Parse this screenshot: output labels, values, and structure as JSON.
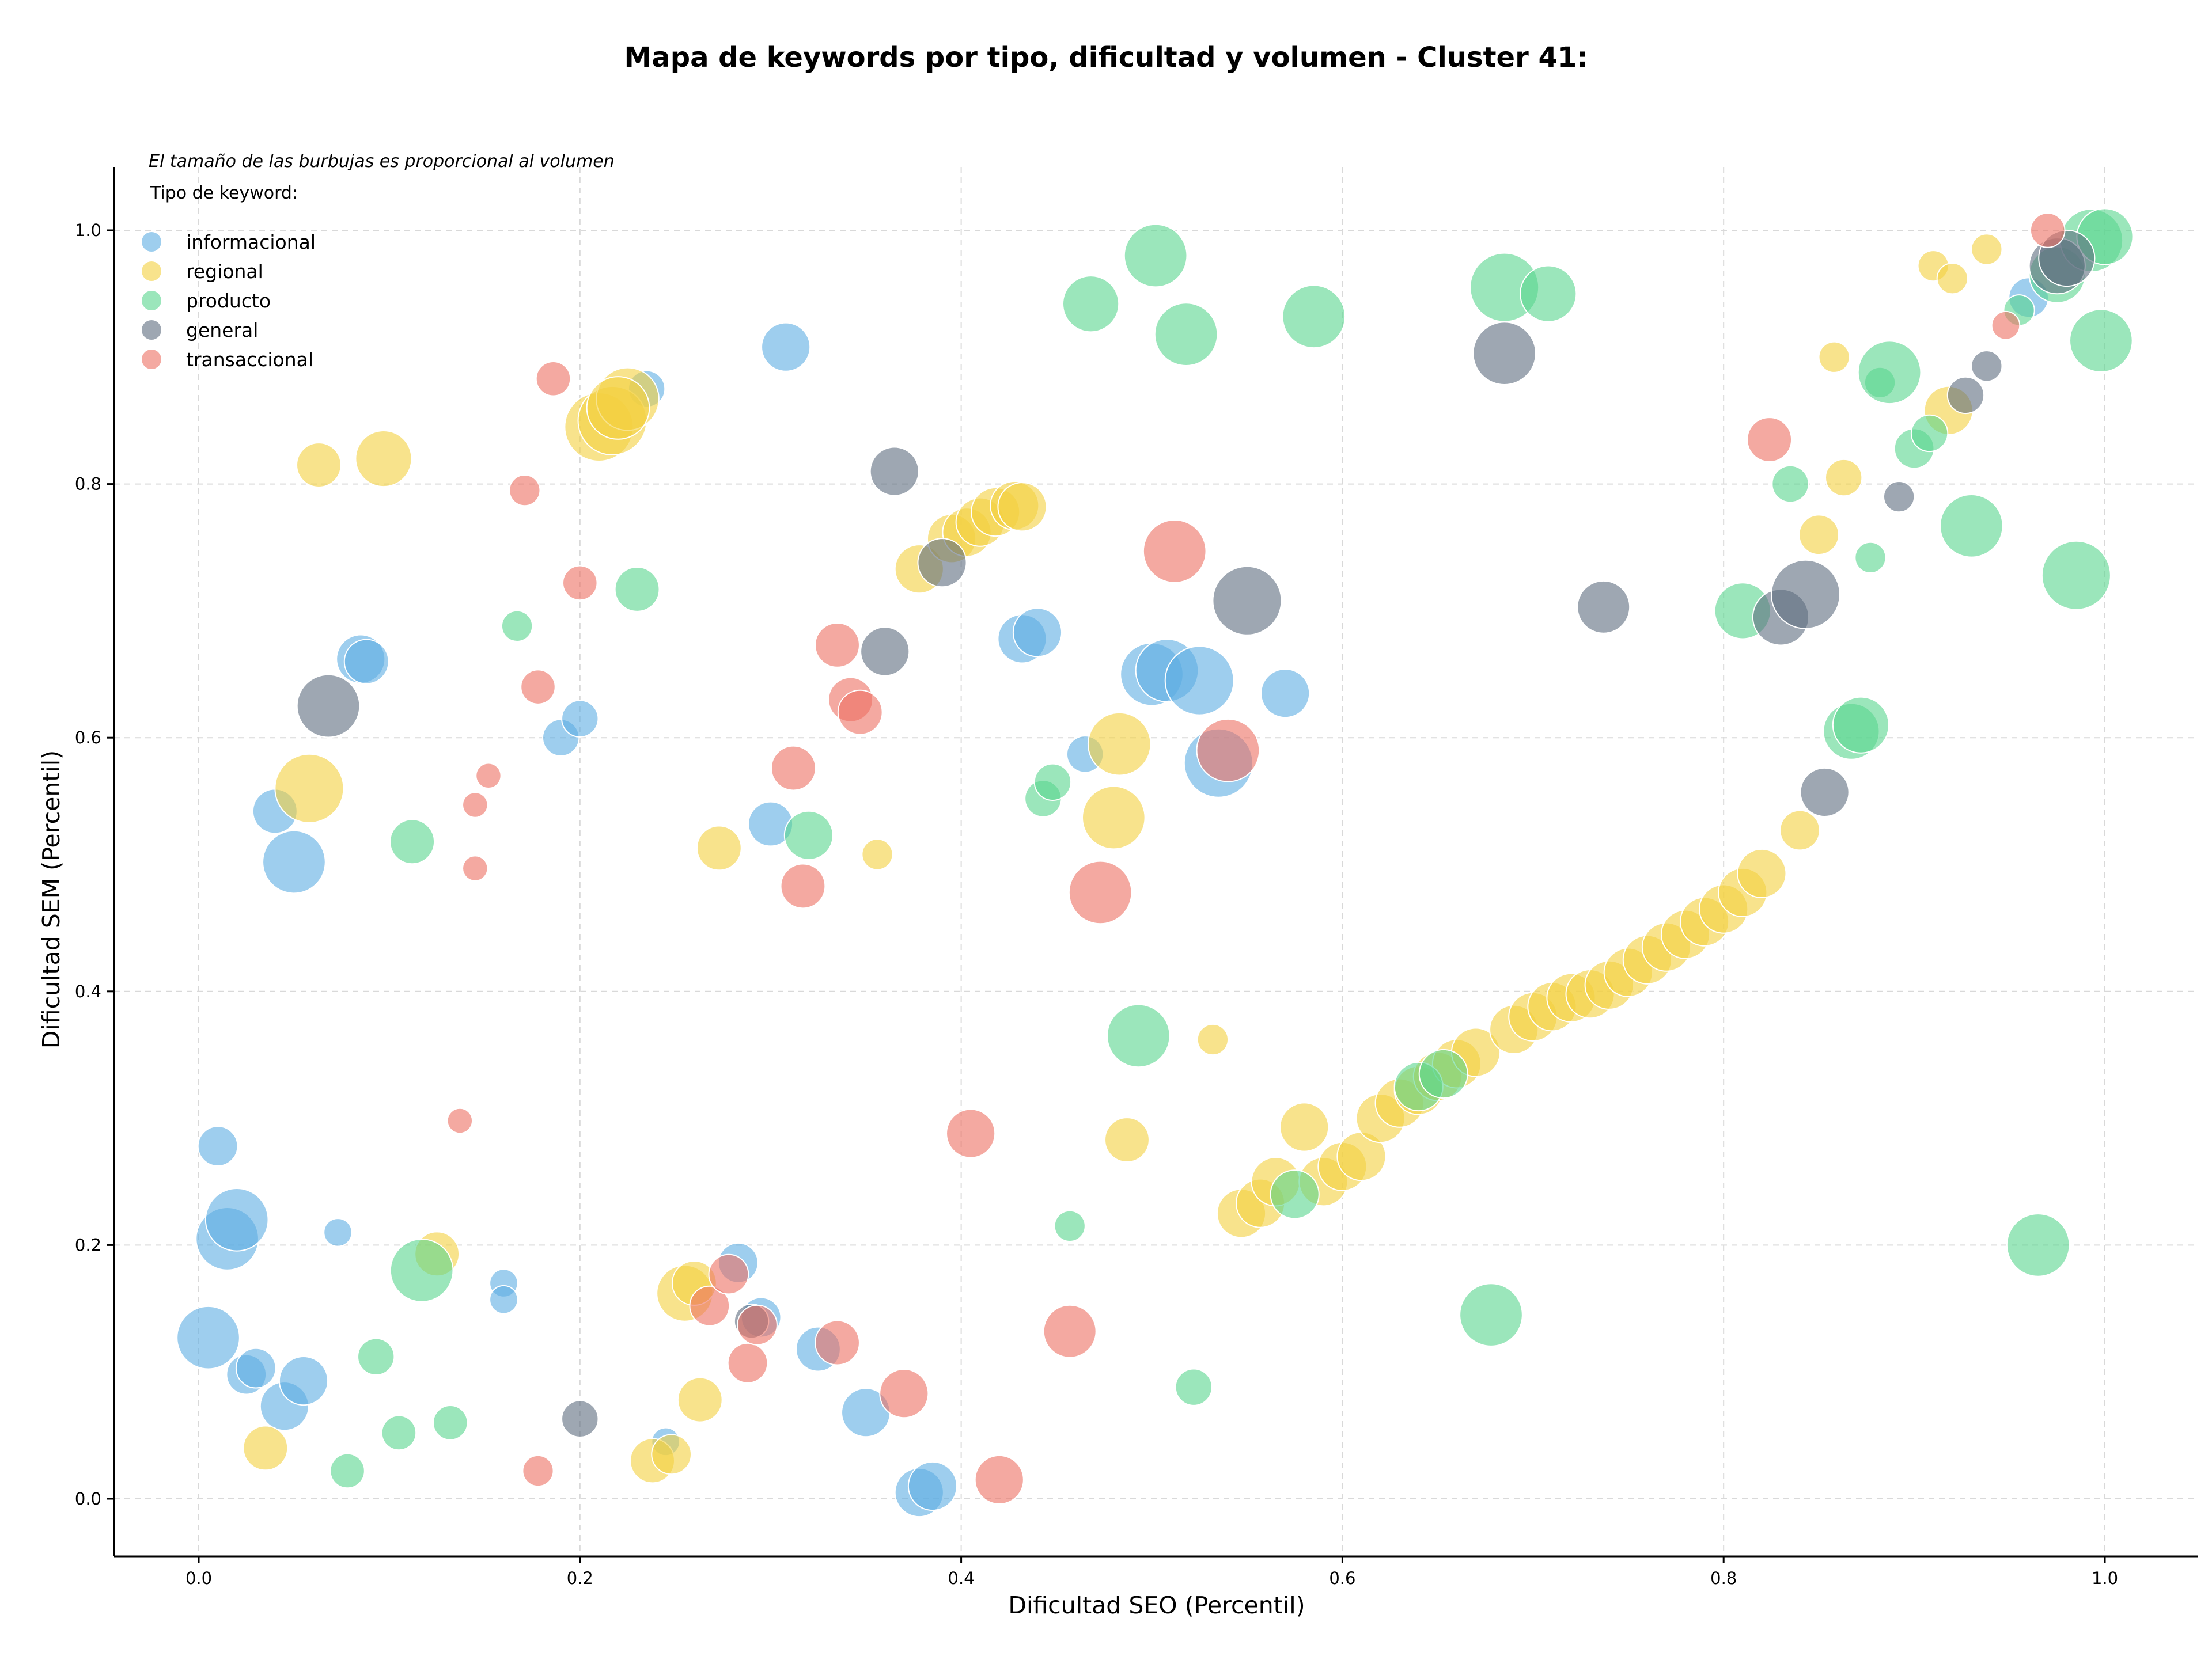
{
  "chart_data": {
    "type": "scatter",
    "title": "Mapa de keywords por tipo, dificultad y volumen - Cluster 41:",
    "xlabel": "Dificultad SEO (Percentil)",
    "ylabel": "Dificultad SEM (Percentil)",
    "xlim": [
      -0.045,
      1.05
    ],
    "ylim": [
      -0.045,
      1.05
    ],
    "xticks": [
      0.0,
      0.2,
      0.4,
      0.6,
      0.8,
      1.0
    ],
    "xtick_labels": [
      "0.0",
      "0.2",
      "0.4",
      "0.6",
      "0.8",
      "1.0"
    ],
    "yticks": [
      0.0,
      0.2,
      0.4,
      0.6,
      0.8,
      1.0
    ],
    "ytick_labels": [
      "0.0",
      "0.2",
      "0.4",
      "0.6",
      "0.8",
      "1.0"
    ],
    "grid": true,
    "legend": {
      "placement": "top-left",
      "note": "El tamaño de las burbujas es proporcional al volumen",
      "title": "Tipo de keyword:"
    },
    "size_note": "s = relative bubble size (proportional to volume)",
    "series": [
      {
        "name": "informacional",
        "color": "#5DADE2",
        "points": [
          {
            "x": 0.005,
            "y": 0.127,
            "s": 5
          },
          {
            "x": 0.015,
            "y": 0.205,
            "s": 5
          },
          {
            "x": 0.02,
            "y": 0.22,
            "s": 5
          },
          {
            "x": 0.01,
            "y": 0.278,
            "s": 2
          },
          {
            "x": 0.025,
            "y": 0.098,
            "s": 2
          },
          {
            "x": 0.03,
            "y": 0.103,
            "s": 2
          },
          {
            "x": 0.045,
            "y": 0.073,
            "s": 3
          },
          {
            "x": 0.055,
            "y": 0.093,
            "s": 3
          },
          {
            "x": 0.073,
            "y": 0.21,
            "s": 1
          },
          {
            "x": 0.05,
            "y": 0.502,
            "s": 5
          },
          {
            "x": 0.04,
            "y": 0.542,
            "s": 2.5
          },
          {
            "x": 0.085,
            "y": 0.662,
            "s": 3
          },
          {
            "x": 0.088,
            "y": 0.66,
            "s": 2.5
          },
          {
            "x": 0.16,
            "y": 0.17,
            "s": 1
          },
          {
            "x": 0.16,
            "y": 0.157,
            "s": 1
          },
          {
            "x": 0.19,
            "y": 0.6,
            "s": 1.7
          },
          {
            "x": 0.2,
            "y": 0.615,
            "s": 1.7
          },
          {
            "x": 0.235,
            "y": 0.875,
            "s": 1.7
          },
          {
            "x": 0.245,
            "y": 0.045,
            "s": 1
          },
          {
            "x": 0.283,
            "y": 0.186,
            "s": 2
          },
          {
            "x": 0.295,
            "y": 0.143,
            "s": 2
          },
          {
            "x": 0.3,
            "y": 0.532,
            "s": 2.5
          },
          {
            "x": 0.308,
            "y": 0.908,
            "s": 3
          },
          {
            "x": 0.325,
            "y": 0.118,
            "s": 2.5
          },
          {
            "x": 0.35,
            "y": 0.068,
            "s": 3
          },
          {
            "x": 0.378,
            "y": 0.005,
            "s": 3
          },
          {
            "x": 0.385,
            "y": 0.01,
            "s": 3
          },
          {
            "x": 0.432,
            "y": 0.678,
            "s": 3
          },
          {
            "x": 0.44,
            "y": 0.683,
            "s": 3
          },
          {
            "x": 0.465,
            "y": 0.587,
            "s": 1.7
          },
          {
            "x": 0.5,
            "y": 0.65,
            "s": 5
          },
          {
            "x": 0.508,
            "y": 0.653,
            "s": 5
          },
          {
            "x": 0.525,
            "y": 0.645,
            "s": 6
          },
          {
            "x": 0.535,
            "y": 0.58,
            "s": 6
          },
          {
            "x": 0.57,
            "y": 0.635,
            "s": 3
          },
          {
            "x": 0.96,
            "y": 0.947,
            "s": 2
          }
        ]
      },
      {
        "name": "regional",
        "color": "#F4D03F",
        "points": [
          {
            "x": 0.035,
            "y": 0.04,
            "s": 2.5
          },
          {
            "x": 0.063,
            "y": 0.815,
            "s": 2.5
          },
          {
            "x": 0.097,
            "y": 0.82,
            "s": 4
          },
          {
            "x": 0.058,
            "y": 0.56,
            "s": 6
          },
          {
            "x": 0.125,
            "y": 0.193,
            "s": 2.5
          },
          {
            "x": 0.21,
            "y": 0.845,
            "s": 6
          },
          {
            "x": 0.217,
            "y": 0.85,
            "s": 6
          },
          {
            "x": 0.225,
            "y": 0.867,
            "s": 5
          },
          {
            "x": 0.22,
            "y": 0.86,
            "s": 5
          },
          {
            "x": 0.238,
            "y": 0.03,
            "s": 2.5
          },
          {
            "x": 0.248,
            "y": 0.035,
            "s": 2
          },
          {
            "x": 0.255,
            "y": 0.162,
            "s": 4
          },
          {
            "x": 0.26,
            "y": 0.17,
            "s": 2.5
          },
          {
            "x": 0.263,
            "y": 0.078,
            "s": 2.5
          },
          {
            "x": 0.273,
            "y": 0.513,
            "s": 2.5
          },
          {
            "x": 0.356,
            "y": 0.508,
            "s": 1.2
          },
          {
            "x": 0.378,
            "y": 0.733,
            "s": 3
          },
          {
            "x": 0.395,
            "y": 0.757,
            "s": 3
          },
          {
            "x": 0.403,
            "y": 0.762,
            "s": 3
          },
          {
            "x": 0.41,
            "y": 0.77,
            "s": 3
          },
          {
            "x": 0.418,
            "y": 0.778,
            "s": 3
          },
          {
            "x": 0.428,
            "y": 0.783,
            "s": 3
          },
          {
            "x": 0.432,
            "y": 0.782,
            "s": 3
          },
          {
            "x": 0.48,
            "y": 0.537,
            "s": 5
          },
          {
            "x": 0.483,
            "y": 0.595,
            "s": 5
          },
          {
            "x": 0.487,
            "y": 0.283,
            "s": 2.5
          },
          {
            "x": 0.532,
            "y": 0.362,
            "s": 1.2
          },
          {
            "x": 0.547,
            "y": 0.225,
            "s": 3
          },
          {
            "x": 0.557,
            "y": 0.233,
            "s": 3
          },
          {
            "x": 0.565,
            "y": 0.25,
            "s": 3
          },
          {
            "x": 0.58,
            "y": 0.293,
            "s": 3
          },
          {
            "x": 0.59,
            "y": 0.25,
            "s": 3
          },
          {
            "x": 0.6,
            "y": 0.262,
            "s": 3
          },
          {
            "x": 0.61,
            "y": 0.27,
            "s": 3
          },
          {
            "x": 0.62,
            "y": 0.3,
            "s": 3
          },
          {
            "x": 0.63,
            "y": 0.312,
            "s": 3
          },
          {
            "x": 0.64,
            "y": 0.322,
            "s": 3
          },
          {
            "x": 0.65,
            "y": 0.333,
            "s": 3
          },
          {
            "x": 0.66,
            "y": 0.343,
            "s": 3
          },
          {
            "x": 0.67,
            "y": 0.352,
            "s": 3
          },
          {
            "x": 0.69,
            "y": 0.37,
            "s": 3
          },
          {
            "x": 0.7,
            "y": 0.38,
            "s": 3
          },
          {
            "x": 0.71,
            "y": 0.388,
            "s": 3
          },
          {
            "x": 0.72,
            "y": 0.395,
            "s": 3
          },
          {
            "x": 0.73,
            "y": 0.398,
            "s": 3
          },
          {
            "x": 0.74,
            "y": 0.405,
            "s": 3
          },
          {
            "x": 0.75,
            "y": 0.415,
            "s": 3
          },
          {
            "x": 0.76,
            "y": 0.425,
            "s": 3
          },
          {
            "x": 0.77,
            "y": 0.435,
            "s": 3
          },
          {
            "x": 0.78,
            "y": 0.445,
            "s": 3
          },
          {
            "x": 0.79,
            "y": 0.455,
            "s": 3
          },
          {
            "x": 0.8,
            "y": 0.465,
            "s": 3
          },
          {
            "x": 0.81,
            "y": 0.478,
            "s": 3
          },
          {
            "x": 0.82,
            "y": 0.493,
            "s": 3
          },
          {
            "x": 0.84,
            "y": 0.527,
            "s": 2
          },
          {
            "x": 0.85,
            "y": 0.76,
            "s": 2
          },
          {
            "x": 0.858,
            "y": 0.9,
            "s": 1.2
          },
          {
            "x": 0.863,
            "y": 0.805,
            "s": 1.7
          },
          {
            "x": 0.91,
            "y": 0.972,
            "s": 1.2
          },
          {
            "x": 0.92,
            "y": 0.962,
            "s": 1.2
          },
          {
            "x": 0.918,
            "y": 0.858,
            "s": 3
          },
          {
            "x": 0.938,
            "y": 0.985,
            "s": 1.2
          }
        ]
      },
      {
        "name": "producto",
        "color": "#58D68D",
        "points": [
          {
            "x": 0.078,
            "y": 0.022,
            "s": 1.5
          },
          {
            "x": 0.093,
            "y": 0.112,
            "s": 1.7
          },
          {
            "x": 0.105,
            "y": 0.052,
            "s": 1.5
          },
          {
            "x": 0.112,
            "y": 0.518,
            "s": 2.5
          },
          {
            "x": 0.117,
            "y": 0.18,
            "s": 5
          },
          {
            "x": 0.132,
            "y": 0.06,
            "s": 1.5
          },
          {
            "x": 0.167,
            "y": 0.688,
            "s": 1.2
          },
          {
            "x": 0.23,
            "y": 0.717,
            "s": 2.5
          },
          {
            "x": 0.32,
            "y": 0.523,
            "s": 3
          },
          {
            "x": 0.443,
            "y": 0.552,
            "s": 1.7
          },
          {
            "x": 0.448,
            "y": 0.565,
            "s": 1.7
          },
          {
            "x": 0.457,
            "y": 0.215,
            "s": 1.2
          },
          {
            "x": 0.468,
            "y": 0.942,
            "s": 4
          },
          {
            "x": 0.493,
            "y": 0.365,
            "s": 5
          },
          {
            "x": 0.502,
            "y": 0.98,
            "s": 5
          },
          {
            "x": 0.518,
            "y": 0.918,
            "s": 5
          },
          {
            "x": 0.522,
            "y": 0.088,
            "s": 1.7
          },
          {
            "x": 0.585,
            "y": 0.932,
            "s": 5
          },
          {
            "x": 0.575,
            "y": 0.24,
            "s": 3
          },
          {
            "x": 0.64,
            "y": 0.325,
            "s": 3
          },
          {
            "x": 0.653,
            "y": 0.335,
            "s": 3
          },
          {
            "x": 0.678,
            "y": 0.145,
            "s": 5
          },
          {
            "x": 0.685,
            "y": 0.955,
            "s": 6
          },
          {
            "x": 0.708,
            "y": 0.95,
            "s": 4
          },
          {
            "x": 0.81,
            "y": 0.7,
            "s": 4
          },
          {
            "x": 0.835,
            "y": 0.8,
            "s": 1.7
          },
          {
            "x": 0.867,
            "y": 0.605,
            "s": 4
          },
          {
            "x": 0.872,
            "y": 0.61,
            "s": 4
          },
          {
            "x": 0.877,
            "y": 0.742,
            "s": 1.2
          },
          {
            "x": 0.882,
            "y": 0.88,
            "s": 1.2
          },
          {
            "x": 0.887,
            "y": 0.888,
            "s": 5
          },
          {
            "x": 0.9,
            "y": 0.828,
            "s": 2
          },
          {
            "x": 0.908,
            "y": 0.84,
            "s": 1.7
          },
          {
            "x": 0.93,
            "y": 0.767,
            "s": 5
          },
          {
            "x": 0.955,
            "y": 0.937,
            "s": 1.2
          },
          {
            "x": 0.965,
            "y": 0.2,
            "s": 5
          },
          {
            "x": 0.975,
            "y": 0.965,
            "s": 4
          },
          {
            "x": 0.985,
            "y": 0.728,
            "s": 6
          },
          {
            "x": 0.993,
            "y": 0.992,
            "s": 5
          },
          {
            "x": 0.998,
            "y": 0.913,
            "s": 5
          },
          {
            "x": 1.0,
            "y": 0.995,
            "s": 4
          }
        ]
      },
      {
        "name": "general",
        "color": "#5D6D7E",
        "points": [
          {
            "x": 0.068,
            "y": 0.625,
            "s": 5
          },
          {
            "x": 0.2,
            "y": 0.063,
            "s": 1.7
          },
          {
            "x": 0.29,
            "y": 0.14,
            "s": 1.5
          },
          {
            "x": 0.36,
            "y": 0.668,
            "s": 3
          },
          {
            "x": 0.365,
            "y": 0.81,
            "s": 3
          },
          {
            "x": 0.39,
            "y": 0.738,
            "s": 3
          },
          {
            "x": 0.55,
            "y": 0.708,
            "s": 6
          },
          {
            "x": 0.685,
            "y": 0.903,
            "s": 5
          },
          {
            "x": 0.737,
            "y": 0.703,
            "s": 3.5
          },
          {
            "x": 0.83,
            "y": 0.695,
            "s": 4
          },
          {
            "x": 0.843,
            "y": 0.713,
            "s": 6
          },
          {
            "x": 0.853,
            "y": 0.557,
            "s": 3
          },
          {
            "x": 0.892,
            "y": 0.79,
            "s": 1.2
          },
          {
            "x": 0.927,
            "y": 0.87,
            "s": 1.7
          },
          {
            "x": 0.938,
            "y": 0.893,
            "s": 1.2
          },
          {
            "x": 0.975,
            "y": 0.972,
            "s": 4
          },
          {
            "x": 0.98,
            "y": 0.978,
            "s": 4
          }
        ]
      },
      {
        "name": "transaccional",
        "color": "#EC7063",
        "points": [
          {
            "x": 0.137,
            "y": 0.298,
            "s": 0.8
          },
          {
            "x": 0.145,
            "y": 0.547,
            "s": 0.8
          },
          {
            "x": 0.145,
            "y": 0.497,
            "s": 0.8
          },
          {
            "x": 0.152,
            "y": 0.57,
            "s": 0.8
          },
          {
            "x": 0.171,
            "y": 0.795,
            "s": 1.2
          },
          {
            "x": 0.178,
            "y": 0.64,
            "s": 1.5
          },
          {
            "x": 0.178,
            "y": 0.022,
            "s": 1.2
          },
          {
            "x": 0.186,
            "y": 0.883,
            "s": 1.5
          },
          {
            "x": 0.2,
            "y": 0.722,
            "s": 1.5
          },
          {
            "x": 0.268,
            "y": 0.152,
            "s": 2
          },
          {
            "x": 0.278,
            "y": 0.177,
            "s": 2
          },
          {
            "x": 0.288,
            "y": 0.107,
            "s": 2
          },
          {
            "x": 0.293,
            "y": 0.137,
            "s": 2
          },
          {
            "x": 0.312,
            "y": 0.576,
            "s": 2.5
          },
          {
            "x": 0.317,
            "y": 0.483,
            "s": 2.5
          },
          {
            "x": 0.335,
            "y": 0.123,
            "s": 2.5
          },
          {
            "x": 0.335,
            "y": 0.673,
            "s": 2.5
          },
          {
            "x": 0.342,
            "y": 0.63,
            "s": 2.5
          },
          {
            "x": 0.347,
            "y": 0.62,
            "s": 2.5
          },
          {
            "x": 0.37,
            "y": 0.083,
            "s": 3
          },
          {
            "x": 0.405,
            "y": 0.288,
            "s": 3
          },
          {
            "x": 0.42,
            "y": 0.015,
            "s": 3
          },
          {
            "x": 0.457,
            "y": 0.132,
            "s": 3.5
          },
          {
            "x": 0.473,
            "y": 0.478,
            "s": 5
          },
          {
            "x": 0.512,
            "y": 0.747,
            "s": 5
          },
          {
            "x": 0.54,
            "y": 0.59,
            "s": 5
          },
          {
            "x": 0.824,
            "y": 0.835,
            "s": 2.5
          },
          {
            "x": 0.948,
            "y": 0.925,
            "s": 1
          },
          {
            "x": 0.97,
            "y": 1.0,
            "s": 1.5
          }
        ]
      }
    ]
  }
}
